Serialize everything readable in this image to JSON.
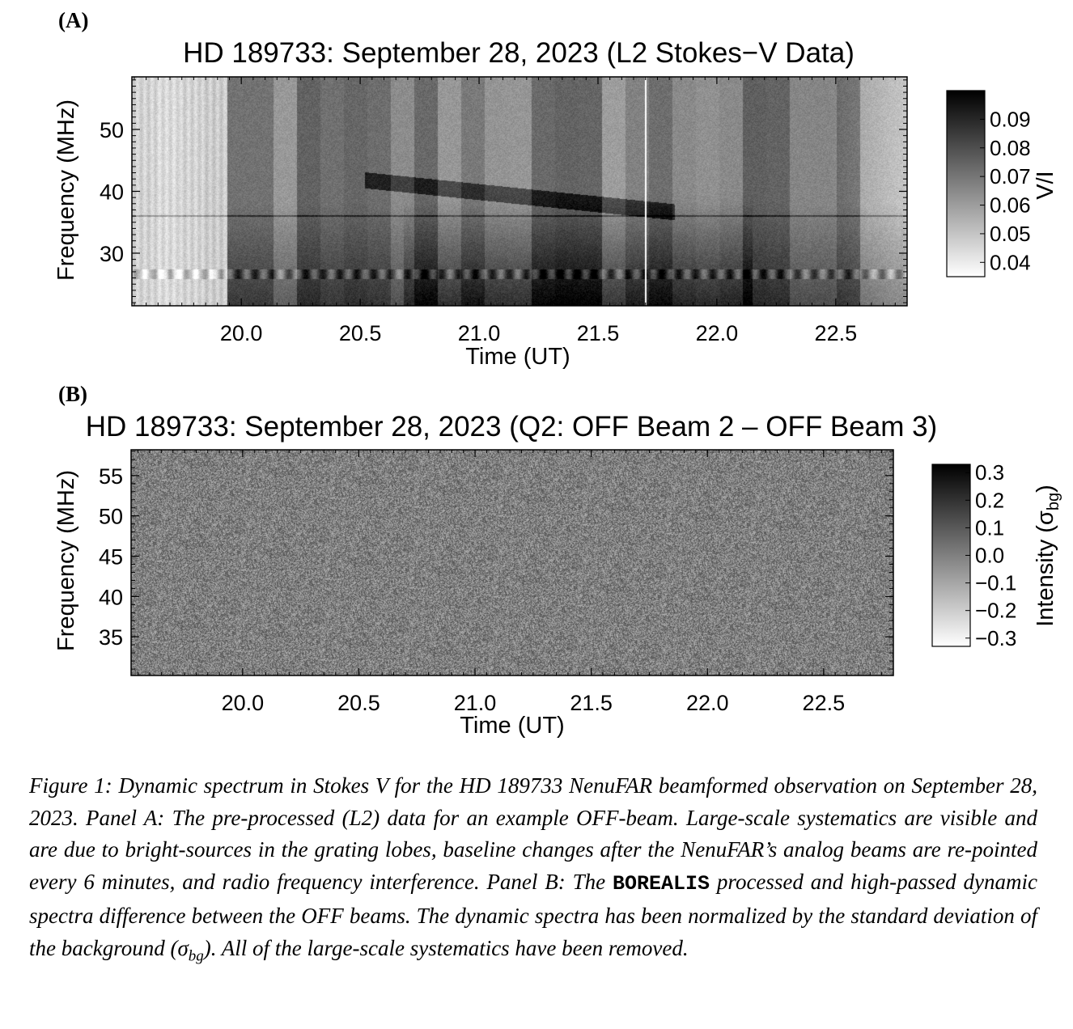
{
  "panel_a": {
    "letter": "(A)"
  },
  "panel_b": {
    "letter": "(B)"
  },
  "chart_data": [
    {
      "type": "heatmap",
      "title": "HD 189733: September 28, 2023 (L2 Stokes−V Data)",
      "xlabel": "Time (UT)",
      "ylabel": "Frequency (MHz)",
      "xlim": [
        19.54,
        22.8
      ],
      "ylim": [
        21.5,
        58.5
      ],
      "xticks": [
        20.0,
        20.5,
        21.0,
        21.5,
        22.0,
        22.5
      ],
      "xtick_labels": [
        "20.0",
        "20.5",
        "21.0",
        "21.5",
        "22.0",
        "22.5"
      ],
      "yticks": [
        30,
        40,
        50
      ],
      "ytick_labels": [
        "30",
        "40",
        "50"
      ],
      "colorbar": {
        "label": "V/I",
        "range": [
          0.035,
          0.1
        ],
        "ticks": [
          0.04,
          0.05,
          0.06,
          0.07,
          0.08,
          0.09
        ],
        "tick_labels": [
          "0.04",
          "0.05",
          "0.06",
          "0.07",
          "0.08",
          "0.09"
        ],
        "cmap": "gray_r"
      }
    },
    {
      "type": "heatmap",
      "title": "HD 189733: September 28, 2023 (Q2: OFF Beam 2 – OFF Beam 3)",
      "xlabel": "Time (UT)",
      "ylabel": "Frequency (MHz)",
      "xlim": [
        19.52,
        22.8
      ],
      "ylim": [
        30.2,
        58.2
      ],
      "xticks": [
        20.0,
        20.5,
        21.0,
        21.5,
        22.0,
        22.5
      ],
      "xtick_labels": [
        "20.0",
        "20.5",
        "21.0",
        "21.5",
        "22.0",
        "22.5"
      ],
      "yticks": [
        35,
        40,
        45,
        50,
        55
      ],
      "ytick_labels": [
        "35",
        "40",
        "45",
        "50",
        "55"
      ],
      "colorbar": {
        "label_main": "Intensity (σ",
        "label_sub": "bg",
        "label_end": ")",
        "range": [
          -0.33,
          0.33
        ],
        "ticks": [
          -0.3,
          -0.2,
          -0.1,
          0.0,
          0.1,
          0.2,
          0.3
        ],
        "tick_labels": [
          "−0.3",
          "−0.2",
          "−0.1",
          "0.0",
          "0.1",
          "0.2",
          "0.3"
        ],
        "cmap": "gray_r"
      }
    }
  ],
  "caption": {
    "p1": "Figure 1:  Dynamic spectrum in Stokes V for the HD 189733 NenuFAR beamformed observation on September 28, 2023.  Panel A: The pre-processed (L2) data for an example OFF-beam.  Large-scale systematics are visible and are due to bright-sources in the grating lobes, baseline changes after the NenuFAR’s analog beams are re-pointed every 6 minutes, and radio frequency interference.  Panel B: The ",
    "code": "BOREALIS",
    "p2": " processed and high-passed dynamic spectra difference between the OFF beams.  The dynamic spectra has been normalized by the standard deviation of the background (σ",
    "sub": "bg",
    "p3": ").  All of the large-scale systematics have been removed."
  }
}
